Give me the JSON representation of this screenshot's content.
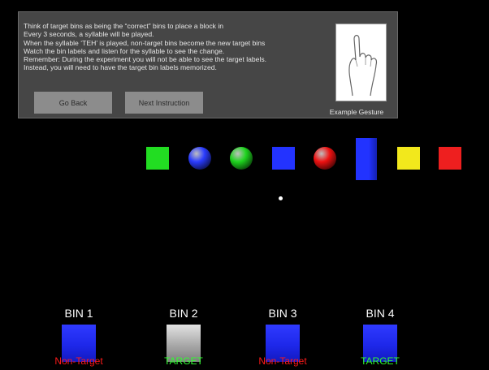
{
  "instructions": {
    "lines": [
      "Think of target bins as being the “correct” bins to place a block in",
      "Every 3 seconds, a syllable will be played.",
      "When the syllable ‘TEH’ is played, non-target bins become the new target bins",
      "Watch the bin labels and listen for the syllable to see the change.",
      "Remember: During the experiment you will not be able to see the target labels.",
      "Instead, you will need to have the target bin labels memorized."
    ],
    "buttons": {
      "back_label": "Go Back",
      "next_label": "Next Instruction"
    },
    "gesture_caption": "Example Gesture"
  },
  "objects": [
    {
      "shape": "cube",
      "color": "#22dd22"
    },
    {
      "shape": "sphere",
      "color": "#2a3cff"
    },
    {
      "shape": "sphere",
      "color": "#1ed41e"
    },
    {
      "shape": "cube",
      "color": "#2333ff"
    },
    {
      "shape": "sphere",
      "color": "#ee1111"
    },
    {
      "shape": "tall-block",
      "color": "#2233ff"
    },
    {
      "shape": "cube",
      "color": "#f2e81c"
    },
    {
      "shape": "cube",
      "color": "#ee1f1f"
    }
  ],
  "bins": [
    {
      "title": "BIN 1",
      "label": "Non-Target",
      "status": "non-target",
      "box_color": "#2a33ff"
    },
    {
      "title": "BIN 2",
      "label": "TARGET",
      "status": "target",
      "box_color": "#cfcfcf"
    },
    {
      "title": "BIN 3",
      "label": "Non-Target",
      "status": "non-target",
      "box_color": "#2a33ff"
    },
    {
      "title": "BIN 4",
      "label": "TARGET",
      "status": "target",
      "box_color": "#2a33ff"
    }
  ]
}
